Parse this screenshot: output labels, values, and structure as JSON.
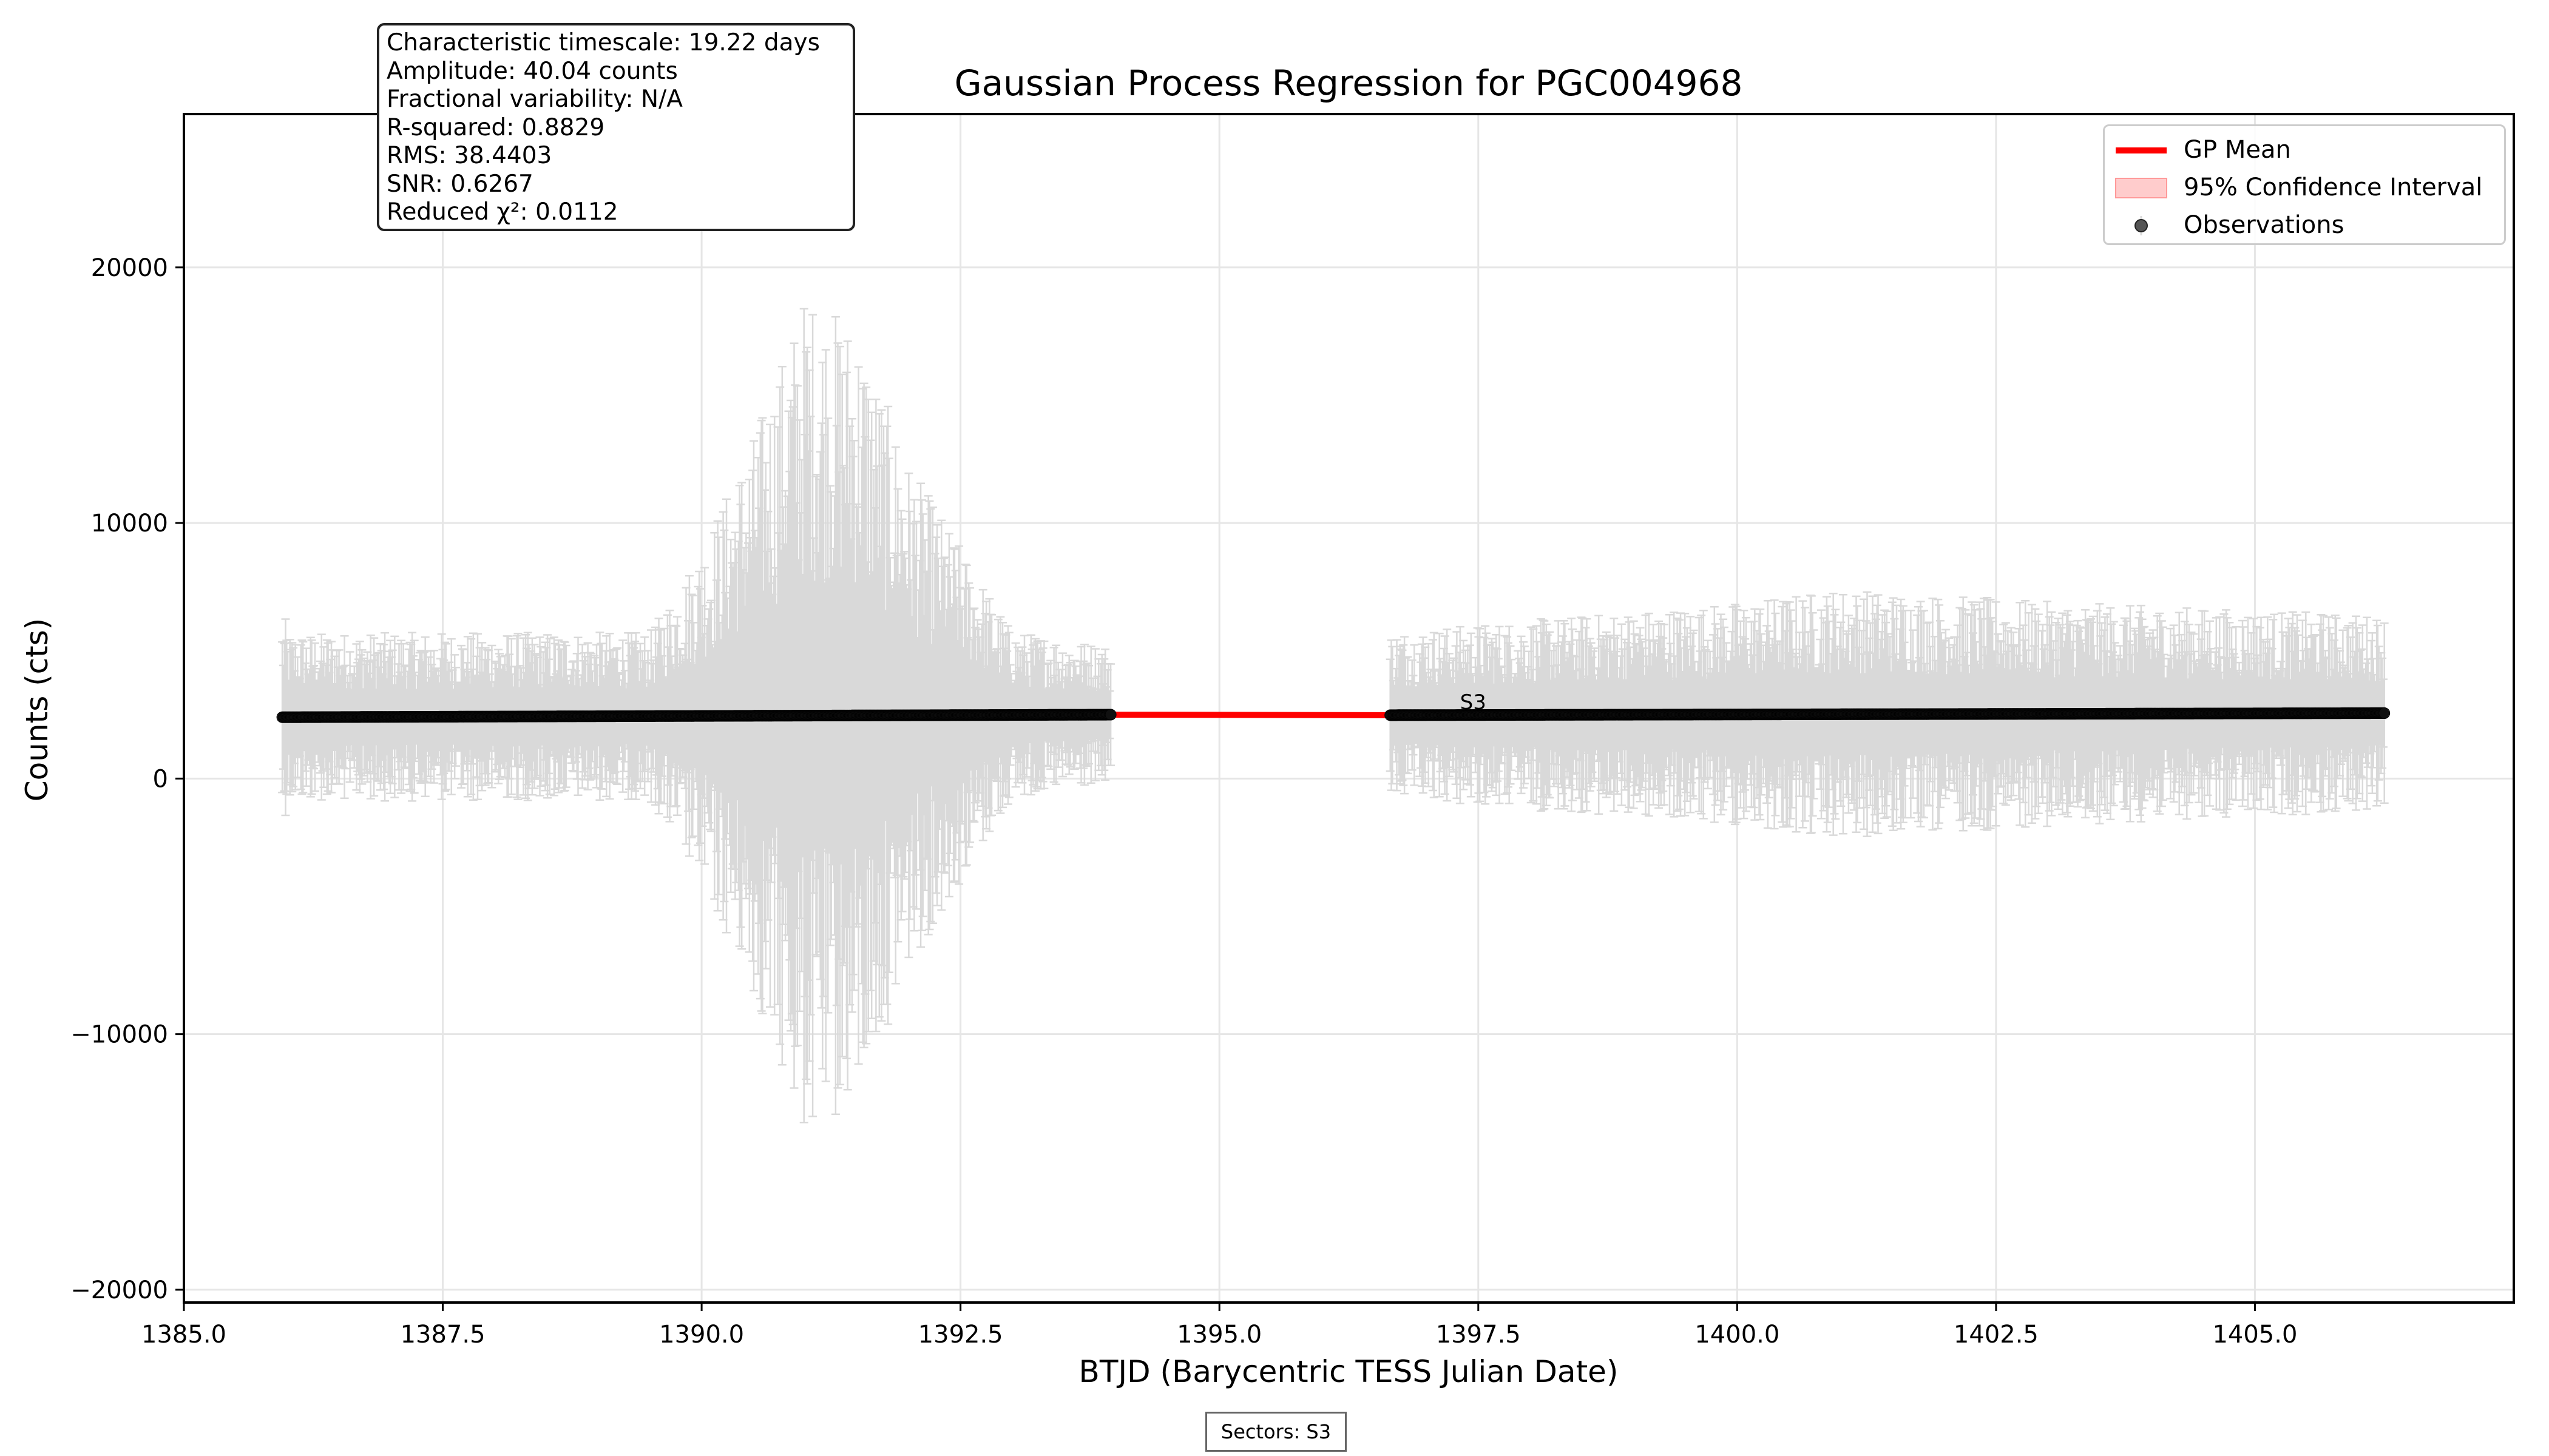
{
  "chart_data": {
    "type": "line",
    "title": "Gaussian Process Regression for PGC004968",
    "xlabel": "BTJD (Barycentric TESS Julian Date)",
    "ylabel": "Counts (cts)",
    "xlim": [
      1385.0,
      1407.5
    ],
    "ylim": [
      -20500,
      26000
    ],
    "xticks": [
      1385.0,
      1387.5,
      1390.0,
      1392.5,
      1395.0,
      1397.5,
      1400.0,
      1402.5,
      1405.0
    ],
    "xtick_labels": [
      "1385.0",
      "1387.5",
      "1390.0",
      "1392.5",
      "1395.0",
      "1397.5",
      "1400.0",
      "1402.5",
      "1405.0"
    ],
    "yticks": [
      -20000,
      -10000,
      0,
      10000,
      20000
    ],
    "ytick_labels": [
      "−20000",
      "−10000",
      "0",
      "10000",
      "20000"
    ],
    "grid": true,
    "legend_position": "top-right",
    "legend": [
      {
        "label": "GP Mean",
        "kind": "line",
        "color": "#ff0000"
      },
      {
        "label": "95% Confidence Interval",
        "kind": "patch",
        "color": "#ffcccc"
      },
      {
        "label": "Observations",
        "kind": "marker",
        "color": "#555555"
      }
    ],
    "gp_mean": {
      "name": "GP Mean",
      "color": "#ff0000",
      "x": [
        1386.0,
        1388.0,
        1390.0,
        1392.0,
        1393.5,
        1393.9,
        1394.0,
        1396.6,
        1398.0,
        1400.0,
        1402.0,
        1404.0,
        1406.2
      ],
      "y": [
        2400,
        2430,
        2460,
        2470,
        2480,
        2580,
        2500,
        2480,
        2500,
        2510,
        2520,
        2530,
        2540
      ]
    },
    "observations": {
      "name": "Observations",
      "color": "#000000",
      "segments": [
        {
          "x_start": 1385.95,
          "x_end": 1393.95,
          "level_start": 2400,
          "level_end": 2500
        },
        {
          "x_start": 1396.65,
          "x_end": 1406.25,
          "level_start": 2480,
          "level_end": 2560
        }
      ],
      "errorbar_color": "#d9d9d9",
      "errorbar_envelope": {
        "x": [
          1386.0,
          1389.5,
          1390.0,
          1390.5,
          1391.0,
          1391.5,
          1392.0,
          1392.5,
          1393.0,
          1393.9,
          1396.7,
          1400.0,
          1401.0,
          1403.0,
          1406.2
        ],
        "half_range": [
          3000,
          3000,
          6000,
          10000,
          15000,
          14000,
          9000,
          6000,
          3000,
          2500,
          3000,
          4000,
          4500,
          4000,
          3500
        ]
      }
    },
    "annotations": [
      {
        "text": "S3",
        "x": 1397.45,
        "y": 3000
      }
    ]
  },
  "stats_box": [
    "Characteristic timescale: 19.22 days",
    "Amplitude: 40.04 counts",
    "Fractional variability: N/A",
    "R-squared: 0.8829",
    "RMS: 38.4403",
    "SNR: 0.6267",
    "Reduced χ²: 0.0112"
  ],
  "sectors_label": "Sectors: S3"
}
